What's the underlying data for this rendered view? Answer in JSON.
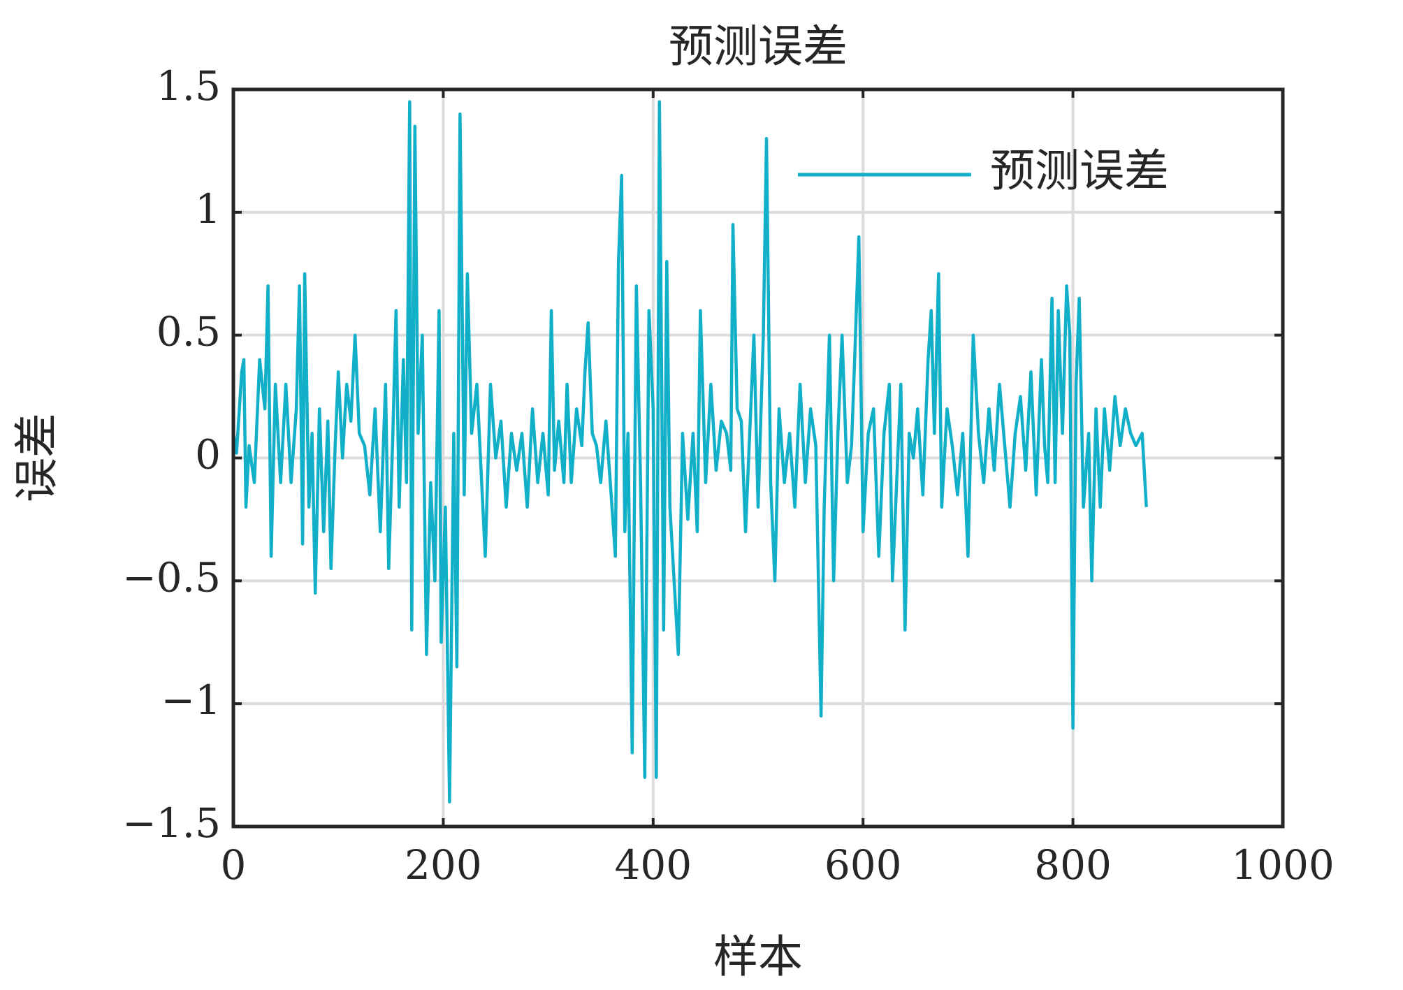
{
  "chart_data": {
    "type": "line",
    "title": "预测误差",
    "xlabel": "样本",
    "ylabel": "误差",
    "x": [
      0,
      3,
      8,
      10,
      12,
      15,
      20,
      25,
      30,
      33,
      36,
      40,
      45,
      50,
      55,
      60,
      63,
      66,
      68,
      72,
      75,
      78,
      82,
      86,
      90,
      93,
      97,
      100,
      104,
      108,
      112,
      116,
      120,
      125,
      130,
      135,
      140,
      145,
      148,
      152,
      155,
      158,
      162,
      165,
      168,
      170,
      173,
      176,
      180,
      184,
      188,
      192,
      196,
      198,
      202,
      206,
      210,
      213,
      216,
      220,
      223,
      227,
      232,
      236,
      240,
      245,
      250,
      255,
      260,
      265,
      270,
      275,
      280,
      285,
      290,
      295,
      300,
      303,
      306,
      310,
      315,
      318,
      322,
      327,
      332,
      335,
      338,
      342,
      346,
      350,
      355,
      360,
      364,
      367,
      370,
      373,
      376,
      380,
      384,
      388,
      392,
      396,
      400,
      403,
      406,
      410,
      413,
      416,
      420,
      424,
      428,
      433,
      438,
      442,
      445,
      450,
      455,
      460,
      465,
      470,
      474,
      476,
      480,
      484,
      488,
      492,
      496,
      500,
      505,
      508,
      512,
      516,
      520,
      525,
      530,
      535,
      540,
      545,
      550,
      555,
      560,
      563,
      568,
      572,
      576,
      580,
      585,
      589,
      592,
      596,
      600,
      605,
      610,
      615,
      620,
      625,
      628,
      632,
      636,
      640,
      644,
      648,
      652,
      657,
      662,
      665,
      668,
      672,
      675,
      680,
      685,
      690,
      695,
      700,
      705,
      710,
      715,
      720,
      725,
      730,
      735,
      740,
      745,
      750,
      755,
      760,
      765,
      770,
      773,
      776,
      780,
      783,
      786,
      790,
      794,
      797,
      800,
      803,
      806,
      810,
      815,
      818,
      822,
      826,
      830,
      835,
      840,
      845,
      850,
      855,
      860,
      866,
      870
    ],
    "series": [
      {
        "name": "预测误差",
        "color": "#12b0c8",
        "values": [
          0.1,
          0.02,
          0.35,
          0.4,
          -0.2,
          0.05,
          -0.1,
          0.4,
          0.2,
          0.7,
          -0.4,
          0.3,
          -0.1,
          0.3,
          -0.1,
          0.2,
          0.7,
          -0.35,
          0.75,
          -0.2,
          0.1,
          -0.55,
          0.2,
          -0.3,
          0.15,
          -0.45,
          0.05,
          0.35,
          0,
          0.3,
          0.15,
          0.5,
          0.1,
          0.05,
          -0.15,
          0.2,
          -0.3,
          0.3,
          -0.45,
          0.1,
          0.6,
          -0.2,
          0.4,
          -0.1,
          1.45,
          -0.7,
          1.35,
          0.1,
          0.5,
          -0.8,
          -0.1,
          -0.5,
          0.6,
          -0.75,
          -0.2,
          -1.4,
          0.1,
          -0.85,
          1.4,
          -0.15,
          0.75,
          0.1,
          0.3,
          -0.05,
          -0.4,
          0.3,
          0,
          0.15,
          -0.2,
          0.1,
          -0.05,
          0.1,
          -0.2,
          0.2,
          -0.1,
          0.1,
          -0.15,
          0.6,
          -0.05,
          0.15,
          -0.1,
          0.3,
          -0.1,
          0.2,
          0.05,
          0.35,
          0.55,
          0.1,
          0.05,
          -0.1,
          0.15,
          -0.15,
          -0.4,
          0.8,
          1.15,
          -0.3,
          0.1,
          -1.2,
          0.7,
          -0.1,
          -1.3,
          0.6,
          0.2,
          -1.3,
          1.45,
          -0.7,
          0.8,
          -0.2,
          -0.5,
          -0.8,
          0.1,
          -0.25,
          0.1,
          -0.3,
          0.6,
          -0.1,
          0.3,
          -0.05,
          0.15,
          0.1,
          -0.05,
          0.95,
          0.2,
          0.15,
          -0.3,
          0.1,
          0.5,
          -0.2,
          0.5,
          1.3,
          -0.1,
          -0.5,
          0.2,
          -0.1,
          0.1,
          -0.2,
          0.3,
          -0.1,
          0.2,
          0.05,
          -1.05,
          -0.2,
          0.5,
          -0.5,
          0.1,
          0.5,
          -0.1,
          0.05,
          0.4,
          0.9,
          -0.3,
          0.1,
          0.2,
          -0.4,
          0.1,
          0.3,
          -0.5,
          -0.1,
          0.3,
          -0.7,
          0.1,
          0,
          0.2,
          -0.15,
          0.4,
          0.6,
          0.1,
          0.75,
          -0.2,
          0.2,
          0.05,
          -0.15,
          0.1,
          -0.4,
          0.5,
          0.1,
          -0.1,
          0.2,
          -0.05,
          0.3,
          0.05,
          -0.2,
          0.1,
          0.25,
          -0.05,
          0.35,
          -0.15,
          0.4,
          0.05,
          -0.1,
          0.65,
          -0.1,
          0.6,
          0.1,
          0.7,
          0.5,
          -1.1,
          0.3,
          0.65,
          -0.2,
          0.1,
          -0.5,
          0.2,
          -0.2,
          0.2,
          -0.05,
          0.25,
          0.05,
          0.2,
          0.1,
          0.05,
          0.1,
          -0.2
        ]
      }
    ],
    "xlim": [
      0,
      1000
    ],
    "xticks": [
      0,
      200,
      400,
      600,
      800,
      1000
    ],
    "ylim": [
      -1.5,
      1.5
    ],
    "yticks": [
      {
        "value": -1.5,
        "label": "−1.5"
      },
      {
        "value": -1,
        "label": "−1"
      },
      {
        "value": -0.5,
        "label": "−0.5"
      },
      0,
      0.5,
      1,
      1.5
    ],
    "grid": true,
    "legend": "upper right"
  }
}
